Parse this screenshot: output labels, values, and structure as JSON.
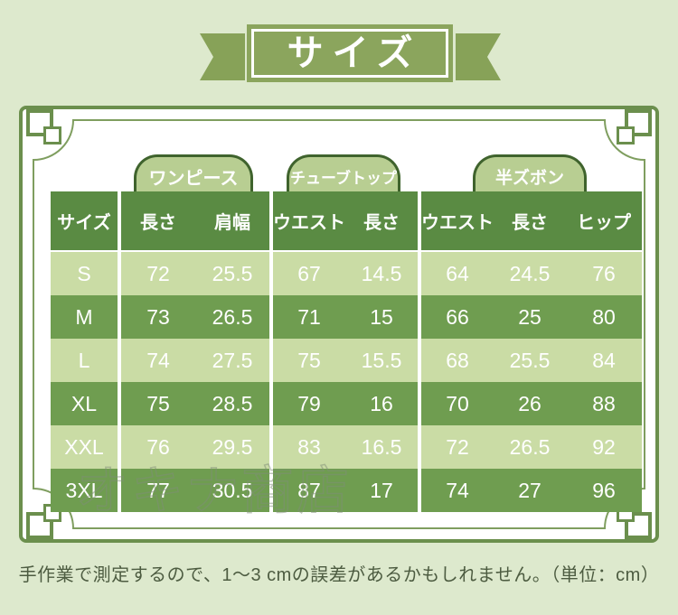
{
  "title": {
    "text": "サイズ"
  },
  "tabs": [
    {
      "label": "ワンピース"
    },
    {
      "label": "チューブトップ"
    },
    {
      "label": "半ズボン"
    }
  ],
  "table": {
    "size_header": "サイズ",
    "groups": [
      {
        "label": "ワンピース",
        "columns": [
          "長さ",
          "肩幅"
        ]
      },
      {
        "label": "チューブトップ",
        "columns": [
          "ウエスト",
          "長さ"
        ]
      },
      {
        "label": "半ズボン",
        "columns": [
          "ウエスト",
          "長さ",
          "ヒップ"
        ]
      }
    ],
    "rows": [
      {
        "size": "S",
        "values": [
          72,
          25.5,
          67,
          14.5,
          64,
          24.5,
          76
        ]
      },
      {
        "size": "M",
        "values": [
          73,
          26.5,
          71,
          15,
          66,
          25,
          80
        ]
      },
      {
        "size": "L",
        "values": [
          74,
          27.5,
          75,
          15.5,
          68,
          25.5,
          84
        ]
      },
      {
        "size": "XL",
        "values": [
          75,
          28.5,
          79,
          16,
          70,
          26,
          88
        ]
      },
      {
        "size": "XXL",
        "values": [
          76,
          29.5,
          83,
          16.5,
          72,
          26.5,
          92
        ]
      },
      {
        "size": "3XL",
        "values": [
          77,
          30.5,
          87,
          17,
          74,
          27,
          96
        ]
      }
    ]
  },
  "watermark": "オキナ商店",
  "footer_note": "手作業で測定するので、1〜3 cmの誤差があるかもしれません。（単位：cm）",
  "colors": {
    "page_bg": "#dde9cd",
    "banner_green": "#8ba55d",
    "ribbon_tail_green": "#87a258",
    "header_green": "#5a8b43",
    "row_light_green": "#cadca5",
    "row_dark_green": "#6f9d50",
    "tab_fill": "#b8ce92",
    "tab_border": "#3f632d",
    "frame_border": "#6b8f4d",
    "footer_text": "#4d5c41"
  }
}
